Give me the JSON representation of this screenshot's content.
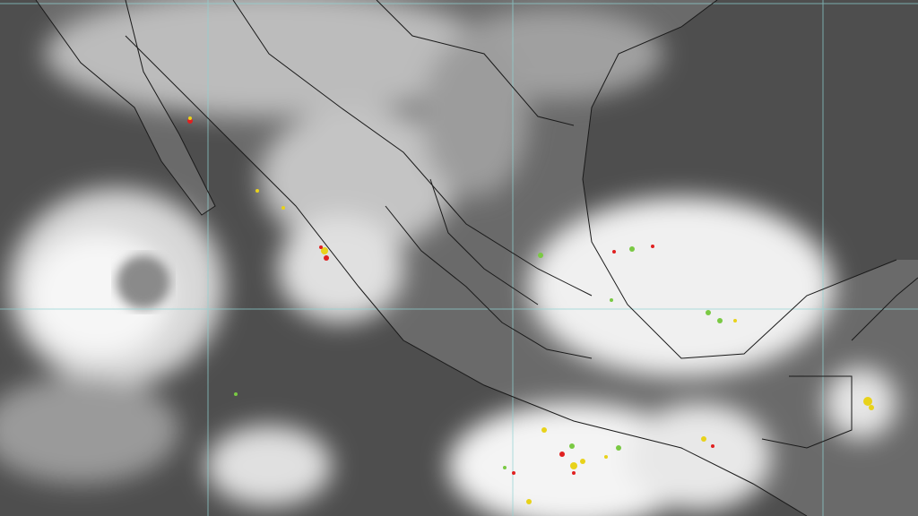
{
  "image": {
    "kind": "infrared satellite image",
    "colors": {
      "ocean": "#4e4e4e",
      "land": "#6a6a6a",
      "cloud": "#f2f2f2",
      "graticule": "#8fd4d4",
      "borders": "#1a1a1a",
      "lightning_recent": "#e8d21a",
      "lightning_mid": "#7ac943",
      "lightning_old": "#e02020"
    }
  }
}
